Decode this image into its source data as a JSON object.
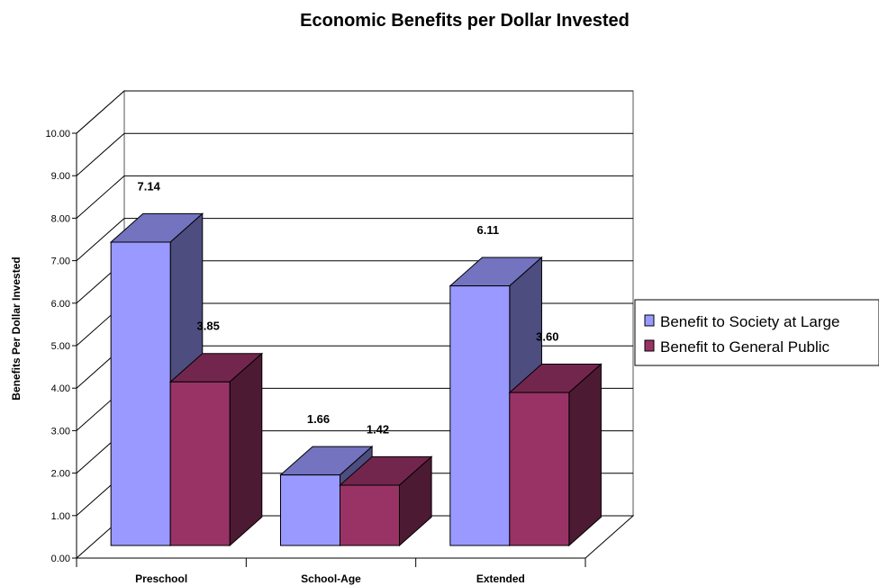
{
  "chart_data": {
    "type": "bar",
    "title": "Economic Benefits per Dollar Invested",
    "xlabel": "",
    "ylabel": "Benefits Per Dollar Invested",
    "categories": [
      "Preschool",
      "School-Age",
      "Extended"
    ],
    "ylim": [
      0,
      10
    ],
    "yticks": [
      "0.00",
      "1.00",
      "2.00",
      "3.00",
      "4.00",
      "5.00",
      "6.00",
      "7.00",
      "8.00",
      "9.00",
      "10.00"
    ],
    "grid": true,
    "legend_position": "right",
    "series": [
      {
        "name": "Benefit to Society at Large",
        "values": [
          7.14,
          1.66,
          6.11
        ],
        "labels": [
          "7.14",
          "1.66",
          "6.11"
        ],
        "color": "#9999ff"
      },
      {
        "name": "Benefit to General Public",
        "values": [
          3.85,
          1.42,
          3.6
        ],
        "labels": [
          "3.85",
          "1.42",
          "3.60"
        ],
        "color": "#993366"
      }
    ]
  }
}
